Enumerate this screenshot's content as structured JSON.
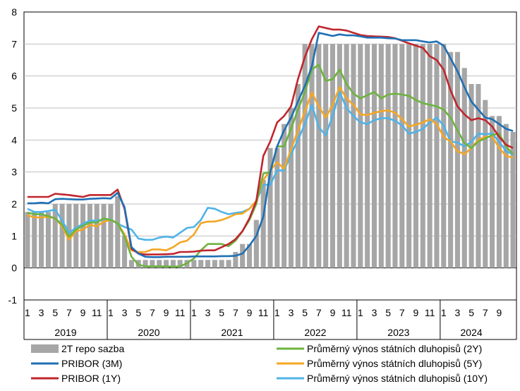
{
  "chart_data": {
    "type": "bar+line",
    "title": "",
    "xlabel": "",
    "ylabel": "",
    "ylim": [
      -1,
      8
    ],
    "yticks": [
      -1,
      0,
      1,
      2,
      3,
      4,
      5,
      6,
      7,
      8
    ],
    "grid": "horizontal",
    "legend_position": "bottom",
    "colors": {
      "repo": "#a6a6a6",
      "pribor3m": "#1f6fb4",
      "pribor1y": "#c0262d",
      "yield2y": "#6db33f",
      "yield5y": "#f5a623",
      "yield10y": "#4fb3e8"
    },
    "month_labels": [
      "1",
      "3",
      "5",
      "7",
      "9",
      "11",
      "1",
      "3",
      "5",
      "7",
      "9",
      "11",
      "1",
      "3",
      "5",
      "7",
      "9",
      "11",
      "1",
      "3",
      "5",
      "7",
      "9",
      "11",
      "1",
      "3",
      "5",
      "7",
      "9",
      "11",
      "1",
      "3",
      "5",
      "7",
      "9"
    ],
    "years": [
      {
        "label": "2019",
        "months": 12
      },
      {
        "label": "2020",
        "months": 12
      },
      {
        "label": "2021",
        "months": 12
      },
      {
        "label": "2022",
        "months": 12
      },
      {
        "label": "2023",
        "months": 12
      },
      {
        "label": "2024",
        "months": 9
      }
    ],
    "series": [
      {
        "key": "repo",
        "type": "bar",
        "name": "2T repo sazba",
        "values": [
          1.75,
          1.75,
          1.75,
          1.75,
          2.0,
          2.0,
          2.0,
          2.0,
          2.0,
          2.0,
          2.0,
          2.0,
          2.0,
          2.25,
          1.0,
          0.25,
          0.25,
          0.25,
          0.25,
          0.25,
          0.25,
          0.25,
          0.25,
          0.25,
          0.25,
          0.25,
          0.25,
          0.25,
          0.25,
          0.25,
          0.5,
          0.75,
          0.75,
          1.5,
          2.75,
          3.75,
          3.75,
          4.5,
          5.0,
          5.75,
          7.0,
          7.0,
          7.0,
          7.0,
          7.0,
          7.0,
          7.0,
          7.0,
          7.0,
          7.0,
          7.0,
          7.0,
          7.0,
          7.0,
          7.0,
          7.0,
          7.0,
          7.0,
          7.0,
          7.0,
          7.0,
          6.75,
          6.75,
          6.25,
          5.75,
          5.75,
          5.25,
          4.75,
          4.75,
          4.5,
          4.25
        ]
      },
      {
        "key": "pribor3m",
        "type": "line",
        "name": "PRIBOR (3M)",
        "values": [
          2.02,
          2.02,
          2.04,
          2.02,
          2.15,
          2.16,
          2.15,
          2.14,
          2.14,
          2.16,
          2.17,
          2.18,
          2.17,
          2.35,
          1.9,
          0.65,
          0.45,
          0.35,
          0.34,
          0.34,
          0.35,
          0.35,
          0.35,
          0.35,
          0.36,
          0.36,
          0.36,
          0.36,
          0.37,
          0.37,
          0.38,
          0.45,
          0.7,
          1.0,
          1.6,
          3.0,
          3.8,
          4.3,
          4.7,
          5.2,
          5.7,
          6.3,
          7.35,
          7.3,
          7.25,
          7.3,
          7.27,
          7.27,
          7.24,
          7.2,
          7.2,
          7.2,
          7.18,
          7.17,
          7.12,
          7.12,
          7.12,
          7.08,
          7.05,
          7.08,
          6.95,
          6.55,
          6.15,
          5.65,
          5.2,
          4.95,
          4.7,
          4.65,
          4.5,
          4.35,
          4.28
        ]
      },
      {
        "key": "pribor1y",
        "type": "line",
        "name": "PRIBOR (1Y)",
        "values": [
          2.22,
          2.22,
          2.22,
          2.22,
          2.32,
          2.3,
          2.28,
          2.25,
          2.22,
          2.28,
          2.28,
          2.28,
          2.28,
          2.45,
          1.85,
          0.6,
          0.45,
          0.42,
          0.42,
          0.42,
          0.43,
          0.44,
          0.5,
          0.5,
          0.51,
          0.54,
          0.55,
          0.55,
          0.65,
          0.75,
          0.9,
          1.15,
          1.55,
          2.1,
          3.5,
          3.95,
          4.55,
          4.75,
          5.05,
          5.9,
          6.6,
          7.15,
          7.55,
          7.5,
          7.45,
          7.45,
          7.42,
          7.35,
          7.28,
          7.25,
          7.24,
          7.23,
          7.22,
          7.18,
          7.1,
          7.02,
          6.95,
          6.88,
          6.62,
          6.5,
          6.2,
          5.55,
          5.05,
          4.8,
          4.62,
          4.68,
          4.62,
          4.42,
          4.1,
          3.85,
          3.75
        ]
      },
      {
        "key": "yield2y",
        "type": "line",
        "name": "Průměrný výnos státních dluhopisů (2Y)",
        "values": [
          1.73,
          1.68,
          1.68,
          1.62,
          1.55,
          1.35,
          0.98,
          1.2,
          1.32,
          1.42,
          1.42,
          1.55,
          1.5,
          1.4,
          0.98,
          0.35,
          0.1,
          0.05,
          0.05,
          0.05,
          0.05,
          0.04,
          0.05,
          0.15,
          0.3,
          0.55,
          0.75,
          0.75,
          0.75,
          0.68,
          0.85,
          1.15,
          1.5,
          2.0,
          2.95,
          3.0,
          3.8,
          3.8,
          4.35,
          4.95,
          5.5,
          6.2,
          6.35,
          5.85,
          5.9,
          6.2,
          5.75,
          5.45,
          5.3,
          5.4,
          5.5,
          5.3,
          5.42,
          5.45,
          5.42,
          5.38,
          5.25,
          5.15,
          5.1,
          5.05,
          4.95,
          4.7,
          4.3,
          3.9,
          3.75,
          3.95,
          4.05,
          4.15,
          4.2,
          3.8,
          3.55
        ]
      },
      {
        "key": "yield5y",
        "type": "line",
        "name": "Průměrný výnos státních dluhopisů (5Y)",
        "values": [
          1.65,
          1.58,
          1.58,
          1.6,
          1.55,
          1.3,
          0.88,
          1.15,
          1.2,
          1.35,
          1.3,
          1.45,
          1.5,
          1.4,
          1.05,
          0.55,
          0.5,
          0.5,
          0.58,
          0.58,
          0.55,
          0.65,
          0.8,
          0.85,
          1.05,
          1.4,
          1.45,
          1.45,
          1.5,
          1.58,
          1.68,
          1.7,
          1.85,
          2.1,
          2.75,
          3.05,
          3.3,
          3.1,
          3.7,
          4.3,
          4.9,
          5.48,
          5.05,
          4.7,
          5.1,
          5.65,
          5.3,
          5.1,
          4.8,
          4.78,
          4.85,
          4.9,
          4.93,
          4.85,
          4.65,
          4.42,
          4.48,
          4.55,
          4.65,
          4.5,
          4.1,
          3.95,
          3.65,
          3.55,
          3.75,
          4.0,
          4.1,
          4.1,
          3.75,
          3.5,
          3.45
        ]
      },
      {
        "key": "yield10y",
        "type": "line",
        "name": "Průměrný výnos státních dluhopisů (10Y)",
        "values": [
          1.85,
          1.75,
          1.75,
          1.78,
          1.82,
          1.48,
          1.1,
          1.25,
          1.38,
          1.48,
          1.48,
          1.52,
          1.52,
          1.38,
          1.28,
          1.2,
          0.92,
          0.88,
          0.88,
          0.95,
          0.98,
          0.95,
          1.1,
          1.25,
          1.28,
          1.5,
          1.88,
          1.85,
          1.75,
          1.68,
          1.72,
          1.75,
          1.85,
          2.1,
          2.6,
          2.6,
          3.05,
          3.05,
          3.55,
          4.0,
          4.5,
          5.1,
          4.4,
          4.15,
          4.75,
          5.5,
          5.0,
          4.75,
          4.55,
          4.5,
          4.62,
          4.68,
          4.68,
          4.6,
          4.45,
          4.2,
          4.25,
          4.35,
          4.55,
          4.7,
          4.45,
          3.95,
          3.92,
          3.8,
          3.95,
          4.2,
          4.18,
          4.2,
          3.95,
          3.65,
          3.55
        ]
      }
    ]
  }
}
